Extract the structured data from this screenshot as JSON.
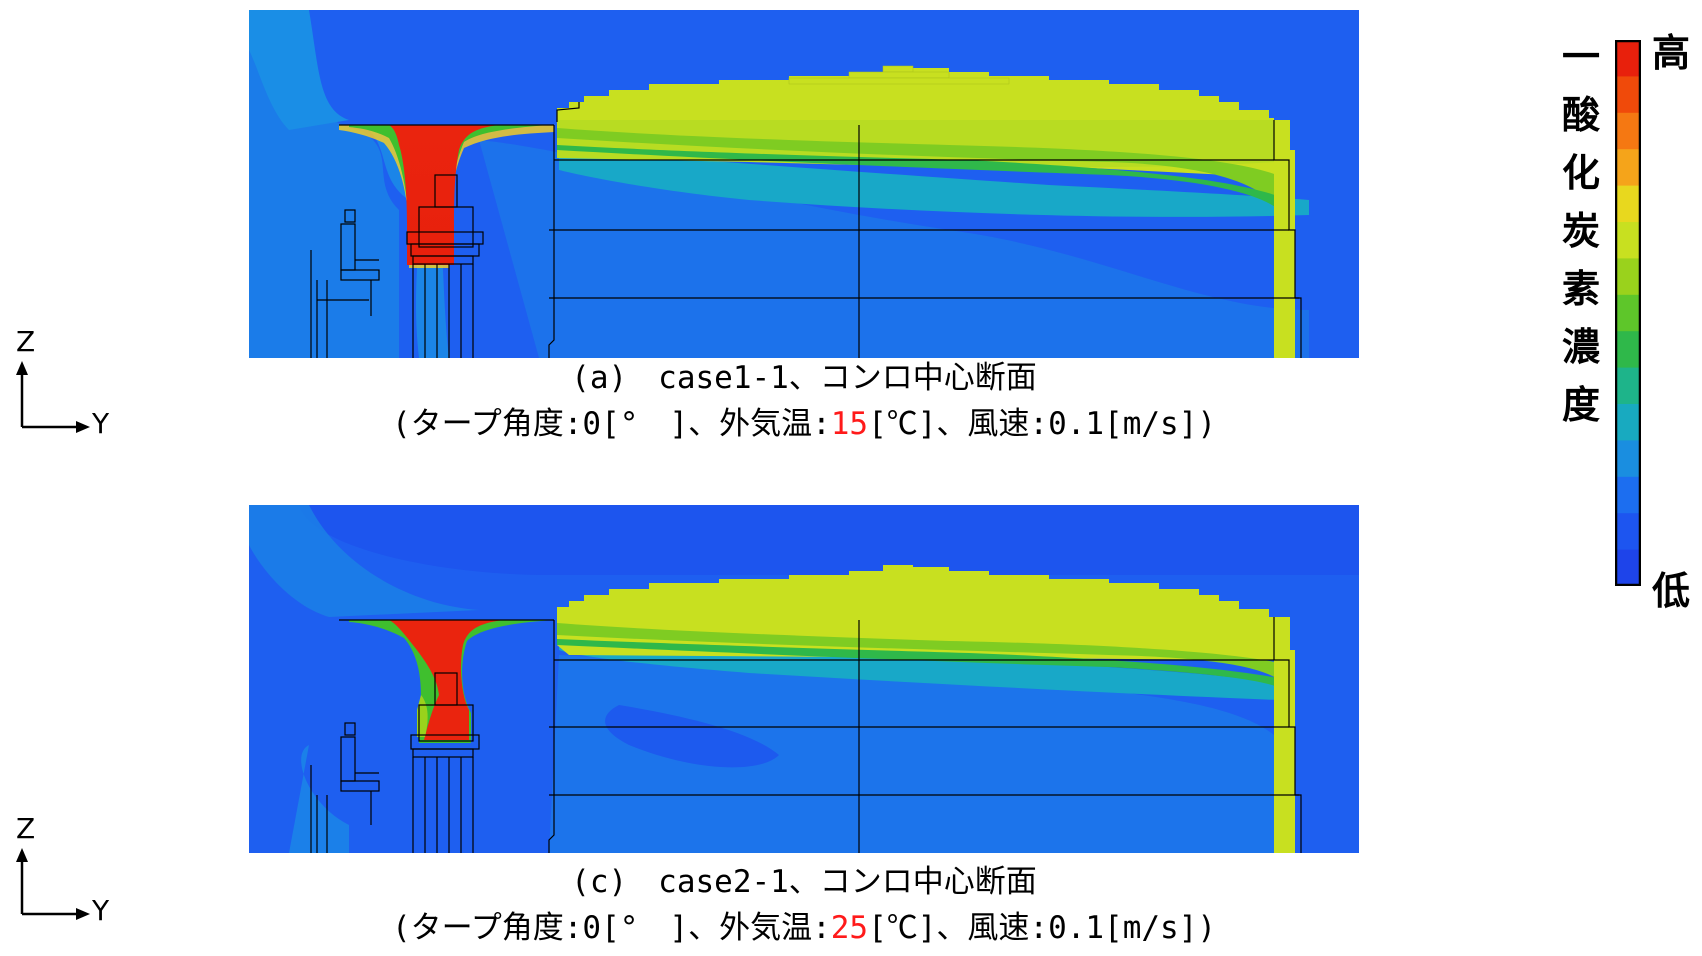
{
  "panel_a": {
    "caption_line1": "(a)　case1-1、コンロ中心断面",
    "caption_line2_prefix": "(タープ角度:0[°　]、外気温:",
    "caption_line2_temp": "15",
    "caption_line2_suffix": "[℃]、風速:0.1[m/s])"
  },
  "panel_c": {
    "caption_line1": "(c)　case2-1、コンロ中心断面",
    "caption_line2_prefix": "(タープ角度:0[°　]、外気温:",
    "caption_line2_temp": "25",
    "caption_line2_suffix": "[℃]、風速:0.1[m/s])"
  },
  "axes": {
    "z_label": "Z",
    "y_label": "Y"
  },
  "legend": {
    "title_chars": [
      "一",
      "酸",
      "化",
      "炭",
      "素",
      "濃",
      "度"
    ],
    "high_label": "高",
    "low_label": "低",
    "colors": [
      "#e8200c",
      "#f04a0a",
      "#f57812",
      "#f5a41a",
      "#e8d81e",
      "#c8e020",
      "#9ad21c",
      "#5ec62a",
      "#2fb84a",
      "#1eb48a",
      "#18aac0",
      "#1a8ee0",
      "#1c6ef0",
      "#1d55f0",
      "#1e44ea"
    ]
  }
}
